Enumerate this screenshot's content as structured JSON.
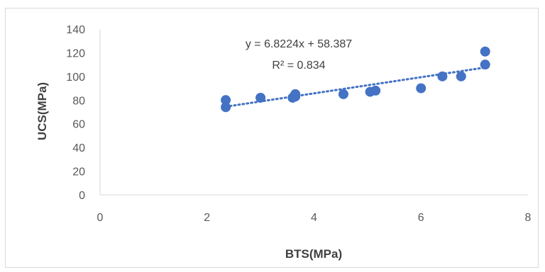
{
  "chart_data": {
    "type": "scatter",
    "xlabel": "BTS(MPa)",
    "ylabel": "UCS(MPa)",
    "xlim": [
      0,
      8
    ],
    "ylim": [
      0,
      140
    ],
    "xticks": [
      0,
      2,
      4,
      6,
      8
    ],
    "yticks": [
      0,
      20,
      40,
      60,
      80,
      100,
      120,
      140
    ],
    "grid": false,
    "legend": "none",
    "series": [
      {
        "color": "#4472c4",
        "points": [
          {
            "x": 2.35,
            "y": 74
          },
          {
            "x": 2.35,
            "y": 80
          },
          {
            "x": 3.0,
            "y": 82
          },
          {
            "x": 3.6,
            "y": 82
          },
          {
            "x": 3.65,
            "y": 83
          },
          {
            "x": 3.65,
            "y": 85
          },
          {
            "x": 4.55,
            "y": 85
          },
          {
            "x": 5.05,
            "y": 87
          },
          {
            "x": 5.15,
            "y": 88
          },
          {
            "x": 6.0,
            "y": 90
          },
          {
            "x": 6.4,
            "y": 100
          },
          {
            "x": 6.75,
            "y": 100
          },
          {
            "x": 7.2,
            "y": 110
          },
          {
            "x": 7.2,
            "y": 121
          }
        ]
      }
    ],
    "trendline": {
      "type": "linear",
      "slope": 6.8224,
      "intercept": 58.387,
      "x_range": [
        2.35,
        7.2
      ],
      "style": "dotted",
      "color": "#4472c4",
      "equation_text": "y = 6.8224x + 58.387",
      "r2_text": "R² = 0.834"
    }
  }
}
